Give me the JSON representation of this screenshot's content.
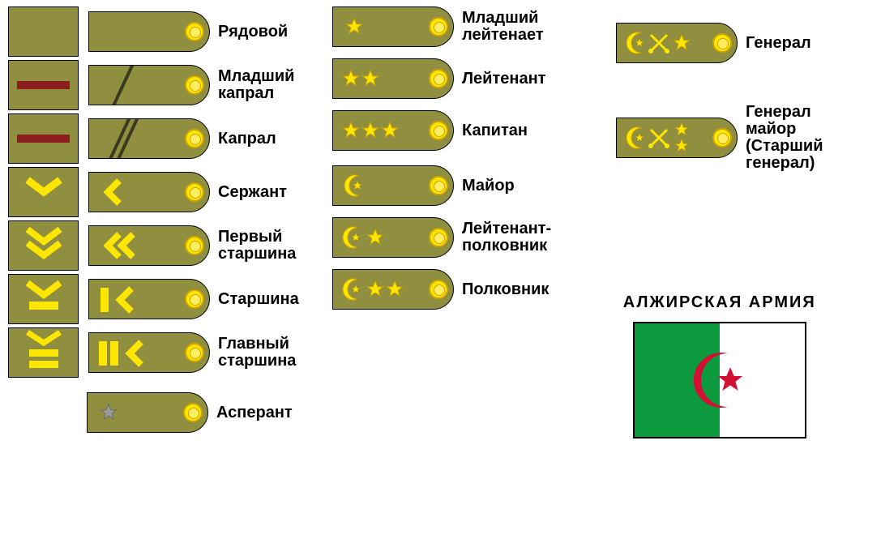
{
  "colors": {
    "olive": "#8f8f3f",
    "yellow": "#ffe600",
    "darkYellow": "#cfa500",
    "maroon": "#8a1d1d",
    "gray": "#8a8a8a",
    "darkOlive": "#3a3a20",
    "flagGreen": "#0b9b3e",
    "flagRed": "#d21034"
  },
  "column1": [
    {
      "label": "Рядовой",
      "patch": "plain",
      "shoulder": "plain"
    },
    {
      "label": "Младший\nкапрал",
      "patch": "stripe1",
      "shoulder": "diag1"
    },
    {
      "label": "Капрал",
      "patch": "stripe1",
      "shoulder": "diag2"
    },
    {
      "label": "Сержант",
      "patch": "chev1",
      "shoulder": "chevS1"
    },
    {
      "label": "Первый\nстаршина",
      "patch": "chev2",
      "shoulder": "chevS2"
    },
    {
      "label": "Старшина",
      "patch": "barChev1",
      "shoulder": "barChevS1"
    },
    {
      "label": "Главный\nстаршина",
      "patch": "barChev2",
      "shoulder": "barChevS2"
    },
    {
      "label": "Асперант",
      "patch": null,
      "shoulder": "grayStar1"
    }
  ],
  "column2": [
    {
      "label": "Младший\nлейтенает",
      "shoulder": "star1"
    },
    {
      "label": "Лейтенант",
      "shoulder": "star2"
    },
    {
      "label": "Капитан",
      "shoulder": "star3"
    },
    {
      "label": "Майор",
      "shoulder": "crescent0"
    },
    {
      "label": "Лейтенант-\nполковник",
      "shoulder": "crescent1"
    },
    {
      "label": "Полковник",
      "shoulder": "crescent2"
    }
  ],
  "column3": [
    {
      "label": "Генерал",
      "shoulder": "general1"
    },
    {
      "label": "Генерал\nмайор\n(Старший\n генерал)",
      "shoulder": "general2"
    }
  ],
  "title": "АЛЖИРСКАЯ   АРМИЯ",
  "layout": {
    "patchWidth": 85,
    "patchHeight": 60,
    "shoulderWidth": 150,
    "shoulderHeight": 50,
    "rowSpacing": 4,
    "col1X": 10,
    "col2X": 410,
    "col3X": 760,
    "labelFontSize": 20
  }
}
